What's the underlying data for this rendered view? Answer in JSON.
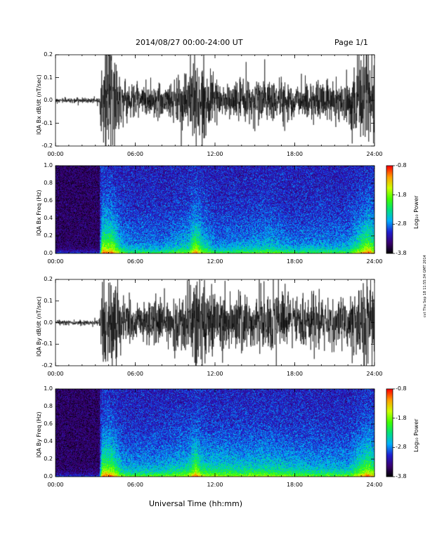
{
  "header": {
    "date_range": "2014/08/27   00:00-24:00 UT",
    "page": "Page 1/1"
  },
  "footer": {
    "xlabel": "Universal Time (hh:mm)",
    "stamp": "cvt Thu Sep 18 11:55:34 GMT 2014"
  },
  "colors": {
    "trace": "#000000",
    "background_spectrogram": "#000000",
    "colorbar": [
      "#000000",
      "#3a0070",
      "#2020d0",
      "#00b0ff",
      "#00e080",
      "#40ff00",
      "#d0ff00",
      "#ffa000",
      "#ff0000"
    ]
  },
  "chart_data": [
    {
      "type": "line",
      "ylabel": "IQA Bx dB/dt (nT/sec)",
      "xlim": [
        0,
        24
      ],
      "ylim": [
        -0.2,
        0.2
      ],
      "xticks": [
        "00:00",
        "06:00",
        "12:00",
        "18:00",
        "24:00"
      ],
      "yticks": [
        "0.2",
        "0.1",
        "0.0",
        "-0.1",
        "-0.2"
      ],
      "activity_envelope": {
        "hours": [
          0,
          3.3,
          3.5,
          4.2,
          5.0,
          6.0,
          8.0,
          10.0,
          10.5,
          11.0,
          12.0,
          14.0,
          16.0,
          18.0,
          20.0,
          22.0,
          23.5,
          24.0
        ],
        "amplitude": [
          0.008,
          0.01,
          0.2,
          0.2,
          0.08,
          0.06,
          0.06,
          0.1,
          0.2,
          0.12,
          0.06,
          0.07,
          0.09,
          0.06,
          0.07,
          0.07,
          0.2,
          0.15
        ]
      }
    },
    {
      "type": "heatmap",
      "ylabel": "IQA Bx Freq (Hz)",
      "xlim": [
        0,
        24
      ],
      "ylim": [
        0.0,
        1.0
      ],
      "xticks": [
        "00:00",
        "06:00",
        "12:00",
        "18:00",
        "24:00"
      ],
      "yticks": [
        "1.0",
        "0.8",
        "0.6",
        "0.4",
        "0.2",
        "0.0"
      ],
      "colorbar": {
        "label": "Log₁₀ Power",
        "ticks": [
          "-0.8",
          "-1.8",
          "-2.8",
          "-3.8"
        ],
        "range": [
          -3.8,
          -0.8
        ]
      }
    },
    {
      "type": "line",
      "ylabel": "IQA By dB/dt (nT/sec)",
      "xlim": [
        0,
        24
      ],
      "ylim": [
        -0.2,
        0.2
      ],
      "xticks": [
        "00:00",
        "06:00",
        "12:00",
        "18:00",
        "24:00"
      ],
      "yticks": [
        "0.2",
        "0.1",
        "0.0",
        "-0.1",
        "-0.2"
      ],
      "activity_envelope": {
        "hours": [
          0,
          3.3,
          3.5,
          4.2,
          5.0,
          6.0,
          8.0,
          10.0,
          10.5,
          11.0,
          12.0,
          14.0,
          16.0,
          18.0,
          20.0,
          22.0,
          23.5,
          24.0
        ],
        "amplitude": [
          0.008,
          0.01,
          0.2,
          0.2,
          0.09,
          0.08,
          0.09,
          0.12,
          0.2,
          0.13,
          0.12,
          0.11,
          0.12,
          0.1,
          0.09,
          0.09,
          0.2,
          0.15
        ]
      }
    },
    {
      "type": "heatmap",
      "ylabel": "IQA By Freq (Hz)",
      "xlim": [
        0,
        24
      ],
      "ylim": [
        0.0,
        1.0
      ],
      "xticks": [
        "00:00",
        "06:00",
        "12:00",
        "18:00",
        "24:00"
      ],
      "yticks": [
        "1.0",
        "0.8",
        "0.6",
        "0.4",
        "0.2",
        "0.0"
      ],
      "colorbar": {
        "label": "Log₁₀ Power",
        "ticks": [
          "-0.8",
          "-1.8",
          "-2.8",
          "-3.8"
        ],
        "range": [
          -3.8,
          -0.8
        ]
      }
    }
  ]
}
